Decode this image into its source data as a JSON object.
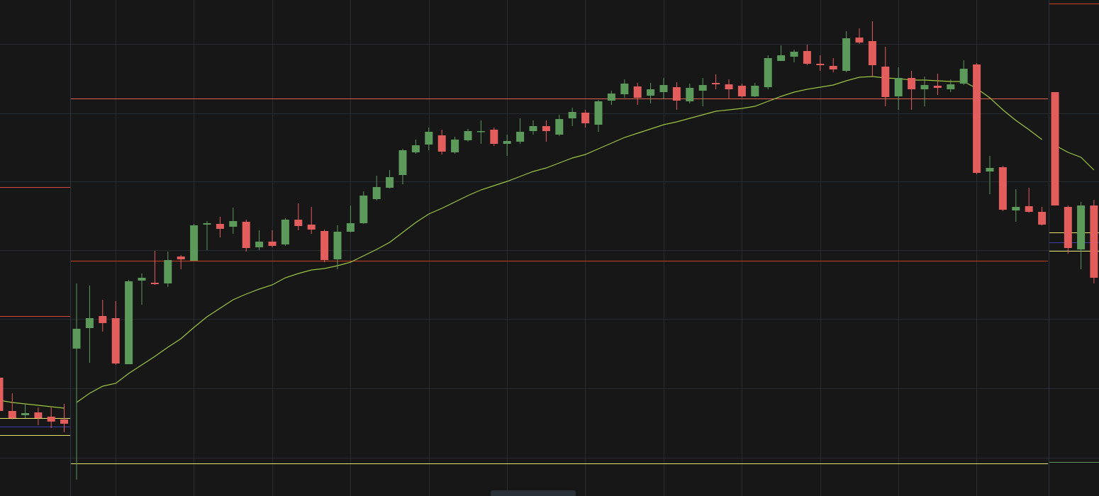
{
  "chart_data": [
    {
      "type": "candlestick",
      "up_color": "#5b9a5b",
      "down_color": "#e35d5d",
      "ylim": [
        0,
        700
      ],
      "categories": [
        null,
        null,
        null,
        null,
        null,
        null
      ],
      "open": [
        167,
        120,
        114,
        118,
        112,
        108
      ],
      "high": [
        167,
        145,
        130,
        125,
        125,
        130
      ],
      "low": [
        120,
        108,
        110,
        100,
        96,
        90
      ],
      "close": [
        120,
        110,
        117,
        110,
        105,
        102
      ],
      "moving_average": {
        "color": "#9bc53d",
        "values": [
          135,
          132,
          130,
          128,
          126,
          124
        ]
      },
      "levels": [
        {
          "value": 436,
          "color": "#d9483b"
        },
        {
          "value": 254,
          "color": "#d9483b"
        },
        {
          "value": 110,
          "color": "#e8e36a"
        },
        {
          "value": 98,
          "color": "#3a3fa8"
        },
        {
          "value": 86,
          "color": "#e8e36a"
        }
      ]
    },
    {
      "type": "candlestick",
      "up_color": "#5b9a5b",
      "down_color": "#e35d5d",
      "ylim": [
        0,
        700
      ],
      "categories": [
        null,
        null,
        null,
        null,
        null,
        null,
        null,
        null,
        null,
        null,
        null,
        null,
        null,
        null,
        null,
        null,
        null,
        null,
        null,
        null,
        null,
        null,
        null,
        null,
        null,
        null,
        null,
        null,
        null,
        null,
        null,
        null,
        null,
        null,
        null,
        null,
        null,
        null,
        null,
        null,
        null,
        null,
        null,
        null,
        null,
        null,
        null,
        null,
        null,
        null,
        null,
        null,
        null,
        null,
        null,
        null,
        null,
        null,
        null,
        null,
        null,
        null,
        null,
        null,
        null,
        null,
        null,
        null,
        null,
        null,
        null,
        null,
        null,
        null,
        null
      ],
      "open": [
        208,
        237,
        254,
        251,
        186,
        304,
        301,
        300,
        338,
        332,
        383,
        384,
        380,
        387,
        351,
        359,
        355,
        390,
        383,
        374,
        334,
        373,
        385,
        419,
        435,
        453,
        485,
        496,
        509,
        485,
        502,
        514,
        517,
        497,
        500,
        515,
        522,
        510,
        533,
        541,
        524,
        558,
        567,
        578,
        565,
        570,
        577,
        557,
        572,
        583,
        581,
        579,
        564,
        577,
        614,
        620,
        628,
        610,
        607,
        600,
        647,
        642,
        606,
        564,
        590,
        574,
        579,
        574,
        582,
        609,
        458,
        464,
        403,
        409,
        401
      ],
      "high": [
        300,
        297,
        277,
        275,
        305,
        314,
        346,
        345,
        340,
        384,
        388,
        394,
        407,
        390,
        375,
        375,
        392,
        413,
        408,
        376,
        382,
        410,
        430,
        452,
        460,
        490,
        503,
        520,
        517,
        507,
        518,
        530,
        520,
        510,
        533,
        530,
        530,
        538,
        548,
        545,
        559,
        572,
        588,
        583,
        583,
        590,
        584,
        582,
        590,
        595,
        588,
        582,
        583,
        622,
        636,
        630,
        637,
        622,
        618,
        656,
        660,
        670,
        634,
        605,
        600,
        592,
        596,
        588,
        615,
        611,
        480,
        466,
        433,
        435,
        408
      ],
      "low": [
        23,
        188,
        232,
        185,
        186,
        270,
        298,
        295,
        320,
        332,
        347,
        365,
        370,
        345,
        347,
        351,
        353,
        375,
        370,
        330,
        320,
        372,
        384,
        417,
        434,
        440,
        483,
        488,
        482,
        483,
        500,
        497,
        494,
        480,
        497,
        510,
        500,
        508,
        522,
        520,
        514,
        552,
        562,
        552,
        554,
        560,
        545,
        554,
        550,
        574,
        560,
        562,
        563,
        574,
        614,
        612,
        608,
        600,
        598,
        598,
        638,
        592,
        550,
        545,
        545,
        550,
        566,
        570,
        580,
        454,
        426,
        402,
        387,
        400,
        382
      ],
      "close": [
        236,
        251,
        244,
        187,
        303,
        308,
        299,
        333,
        334,
        382,
        385,
        377,
        388,
        350,
        359,
        353,
        390,
        381,
        376,
        333,
        373,
        385,
        424,
        436,
        450,
        488,
        495,
        514,
        486,
        503,
        515,
        515,
        497,
        501,
        514,
        522,
        515,
        532,
        542,
        526,
        557,
        568,
        582,
        562,
        574,
        580,
        558,
        576,
        580,
        581,
        574,
        564,
        579,
        618,
        622,
        627,
        610,
        608,
        602,
        646,
        640,
        608,
        563,
        590,
        574,
        580,
        576,
        581,
        603,
        456,
        463,
        404,
        408,
        401,
        383
      ],
      "moving_average": {
        "color": "#9bc53d",
        "values": [
          132,
          145,
          155,
          159,
          173,
          185,
          197,
          210,
          222,
          238,
          253,
          265,
          277,
          285,
          292,
          298,
          308,
          314,
          319,
          321,
          325,
          330,
          339,
          348,
          358,
          372,
          386,
          398,
          406,
          415,
          424,
          432,
          438,
          444,
          451,
          458,
          463,
          470,
          477,
          482,
          490,
          498,
          506,
          512,
          518,
          524,
          528,
          533,
          538,
          543,
          545,
          547,
          550,
          557,
          564,
          570,
          574,
          577,
          580,
          586,
          591,
          592,
          590,
          589,
          587,
          587,
          586,
          585,
          585,
          575,
          562,
          545,
          530,
          517,
          503
        ]
      },
      "levels": [
        {
          "value": 561,
          "color": "#e0614f"
        },
        {
          "value": 332,
          "color": "#c9401e"
        },
        {
          "value": 46,
          "color": "#e8e36a"
        }
      ]
    },
    {
      "type": "candlestick",
      "up_color": "#5b9a5b",
      "down_color": "#e35d5d",
      "ylim": [
        0,
        700
      ],
      "categories": [
        null,
        null,
        null,
        null
      ],
      "open": [
        570,
        408,
        348,
        410
      ],
      "high": [
        570,
        410,
        415,
        418
      ],
      "low": [
        410,
        342,
        320,
        300
      ],
      "close": [
        410,
        350,
        410,
        308
      ],
      "moving_average": {
        "color": "#9bc53d",
        "values": [
          495,
          485,
          478,
          460
        ]
      },
      "levels": [
        {
          "value": 695,
          "color": "#c9401e"
        },
        {
          "value": 372,
          "color": "#e8e36a"
        },
        {
          "value": 358,
          "color": "#3a3fa8"
        },
        {
          "value": 346,
          "color": "#e8e36a"
        },
        {
          "value": 48,
          "color": "#5b9a5b"
        }
      ]
    }
  ]
}
